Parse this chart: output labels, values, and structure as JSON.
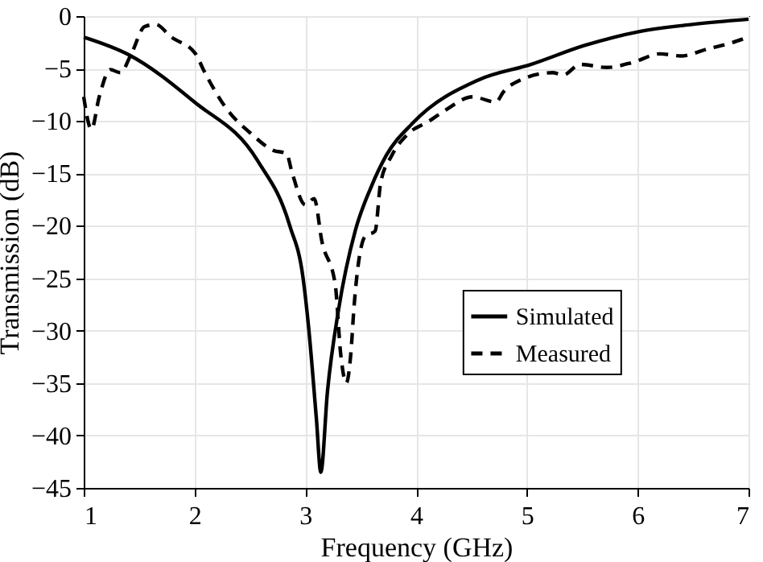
{
  "chart_data": {
    "type": "line",
    "xlabel": "Frequency (GHz)",
    "ylabel": "Transmission (dB)",
    "xlim": [
      1,
      7
    ],
    "xticks": [
      1,
      2,
      3,
      4,
      5,
      6,
      7
    ],
    "ylim": [
      -45,
      0
    ],
    "yticks": [
      -45,
      -40,
      -35,
      -30,
      -25,
      -20,
      -15,
      -10,
      -5,
      0
    ],
    "grid": true,
    "legend": "right",
    "marker": "none",
    "series": [
      {
        "name": "Simulated",
        "color": "#000000",
        "line_style": "solid",
        "x": [
          1,
          1.41,
          2.0,
          2.57,
          2.86,
          2.98,
          3.03,
          3.1,
          3.14,
          3.2,
          3.3,
          3.45,
          3.59,
          3.73,
          3.97,
          4.56,
          5.04,
          5.52,
          6.0,
          6.49,
          7.0
        ],
        "values": [
          -2,
          -3.7,
          -8.2,
          -13.8,
          -20,
          -25,
          -29.7,
          -38.4,
          -43.5,
          -35.8,
          -28,
          -20.5,
          -16.4,
          -13.3,
          -10.2,
          -6.1,
          -4.6,
          -2.8,
          -1.5,
          -0.8,
          -0.3
        ]
      },
      {
        "name": "Measured",
        "color": "#000000",
        "line_style": "dashed",
        "x": [
          1,
          1.07,
          1.14,
          1.24,
          1.33,
          1.43,
          1.55,
          1.65,
          1.79,
          2.01,
          2.08,
          2.28,
          2.52,
          2.71,
          2.83,
          2.88,
          3.0,
          3.08,
          3.15,
          3.27,
          3.32,
          3.37,
          3.41,
          3.44,
          3.54,
          3.63,
          3.68,
          3.78,
          3.92,
          4.12,
          4.26,
          4.51,
          4.72,
          4.79,
          4.94,
          5.23,
          5.33,
          5.48,
          5.72,
          5.96,
          6.2,
          6.39,
          6.64,
          6.83,
          6.97
        ],
        "values": [
          -7.7,
          -10.8,
          -7.7,
          -5.1,
          -5.4,
          -3.6,
          -1.0,
          -0.8,
          -2.0,
          -3.6,
          -5.1,
          -8.7,
          -11.3,
          -12.8,
          -13.1,
          -14.9,
          -18,
          -17.4,
          -21.5,
          -25.6,
          -32.3,
          -35,
          -32.3,
          -27.7,
          -21,
          -20.5,
          -15.9,
          -13.3,
          -11.3,
          -10,
          -9,
          -7.7,
          -8.2,
          -7.2,
          -6.1,
          -5.4,
          -5.6,
          -4.6,
          -4.9,
          -4.4,
          -3.6,
          -3.8,
          -3.1,
          -2.6,
          -2.1
        ]
      }
    ]
  }
}
